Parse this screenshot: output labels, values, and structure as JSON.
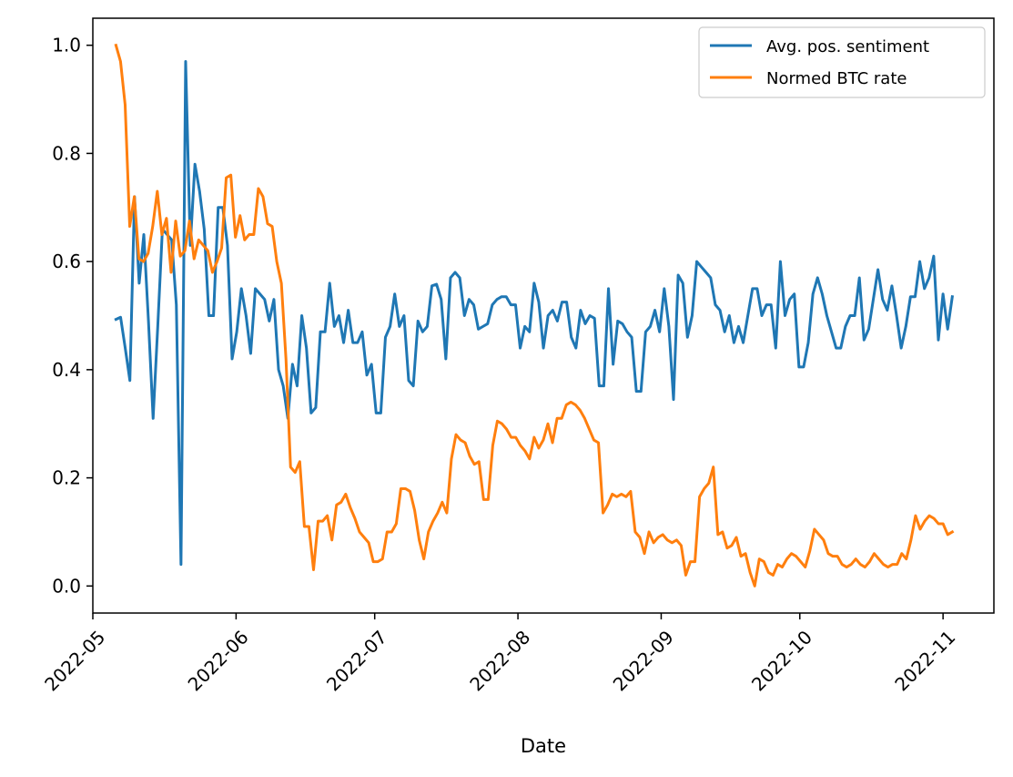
{
  "chart_data": {
    "type": "line",
    "title": "",
    "xlabel": "Date",
    "ylabel": "",
    "x_start": "2022-05-06",
    "x_end": "2022-11-03",
    "xlim": [
      "2022-05-01",
      "2022-11-12"
    ],
    "ylim": [
      -0.05,
      1.05
    ],
    "yticks": [
      0.0,
      0.2,
      0.4,
      0.6,
      0.8,
      1.0
    ],
    "xtick_dates": [
      "2022-05-01",
      "2022-06-01",
      "2022-07-01",
      "2022-08-01",
      "2022-09-01",
      "2022-10-01",
      "2022-11-01"
    ],
    "xtick_labels": [
      "2022-05",
      "2022-06",
      "2022-07",
      "2022-08",
      "2022-09",
      "2022-10",
      "2022-11"
    ],
    "ytick_labels": [
      "0.0",
      "0.2",
      "0.4",
      "0.6",
      "0.8",
      "1.0"
    ],
    "grid": false,
    "legend": "top-right",
    "series": [
      {
        "name": "Avg. pos. sentiment",
        "color": "#1f77b4",
        "values": [
          0.493,
          0.497,
          0.44,
          0.38,
          0.72,
          0.56,
          0.65,
          0.49,
          0.31,
          0.48,
          0.66,
          0.65,
          0.64,
          0.52,
          0.04,
          0.97,
          0.63,
          0.78,
          0.73,
          0.66,
          0.5,
          0.5,
          0.7,
          0.7,
          0.63,
          0.42,
          0.47,
          0.55,
          0.5,
          0.43,
          0.55,
          0.54,
          0.53,
          0.49,
          0.53,
          0.4,
          0.37,
          0.31,
          0.41,
          0.37,
          0.5,
          0.44,
          0.32,
          0.33,
          0.47,
          0.47,
          0.56,
          0.48,
          0.5,
          0.45,
          0.51,
          0.45,
          0.45,
          0.47,
          0.39,
          0.41,
          0.32,
          0.32,
          0.46,
          0.48,
          0.54,
          0.48,
          0.5,
          0.38,
          0.37,
          0.49,
          0.47,
          0.48,
          0.555,
          0.558,
          0.53,
          0.42,
          0.57,
          0.58,
          0.57,
          0.5,
          0.53,
          0.52,
          0.475,
          0.48,
          0.485,
          0.52,
          0.53,
          0.535,
          0.535,
          0.52,
          0.52,
          0.44,
          0.48,
          0.47,
          0.56,
          0.525,
          0.44,
          0.5,
          0.51,
          0.49,
          0.525,
          0.525,
          0.46,
          0.44,
          0.51,
          0.485,
          0.5,
          0.495,
          0.37,
          0.37,
          0.55,
          0.41,
          0.49,
          0.485,
          0.47,
          0.46,
          0.36,
          0.36,
          0.47,
          0.48,
          0.51,
          0.47,
          0.55,
          0.48,
          0.345,
          0.575,
          0.56,
          0.46,
          0.5,
          0.6,
          0.59,
          0.58,
          0.57,
          0.52,
          0.51,
          0.47,
          0.5,
          0.45,
          0.48,
          0.45,
          0.5,
          0.55,
          0.55,
          0.5,
          0.52,
          0.52,
          0.44,
          0.6,
          0.5,
          0.53,
          0.54,
          0.405,
          0.405,
          0.45,
          0.54,
          0.57,
          0.54,
          0.5,
          0.47,
          0.44,
          0.44,
          0.48,
          0.5,
          0.5,
          0.57,
          0.455,
          0.475,
          0.53,
          0.585,
          0.53,
          0.51,
          0.555,
          0.5,
          0.44,
          0.48,
          0.535,
          0.535,
          0.6,
          0.55,
          0.57,
          0.61,
          0.455,
          0.54,
          0.475,
          0.535
        ]
      },
      {
        "name": "Normed BTC rate",
        "color": "#ff7f0e",
        "values": [
          1.0,
          0.97,
          0.89,
          0.665,
          0.72,
          0.605,
          0.6,
          0.615,
          0.665,
          0.73,
          0.65,
          0.68,
          0.58,
          0.675,
          0.61,
          0.62,
          0.675,
          0.605,
          0.64,
          0.63,
          0.62,
          0.58,
          0.6,
          0.625,
          0.755,
          0.76,
          0.645,
          0.685,
          0.64,
          0.65,
          0.65,
          0.735,
          0.72,
          0.67,
          0.665,
          0.6,
          0.56,
          0.42,
          0.22,
          0.21,
          0.23,
          0.11,
          0.11,
          0.03,
          0.12,
          0.12,
          0.13,
          0.085,
          0.15,
          0.155,
          0.17,
          0.145,
          0.125,
          0.1,
          0.09,
          0.08,
          0.045,
          0.045,
          0.05,
          0.1,
          0.1,
          0.115,
          0.18,
          0.18,
          0.175,
          0.14,
          0.085,
          0.05,
          0.1,
          0.12,
          0.135,
          0.155,
          0.135,
          0.235,
          0.28,
          0.27,
          0.265,
          0.24,
          0.225,
          0.23,
          0.16,
          0.16,
          0.26,
          0.305,
          0.3,
          0.29,
          0.275,
          0.275,
          0.26,
          0.25,
          0.235,
          0.275,
          0.255,
          0.27,
          0.3,
          0.265,
          0.31,
          0.31,
          0.335,
          0.34,
          0.335,
          0.325,
          0.31,
          0.29,
          0.27,
          0.265,
          0.135,
          0.15,
          0.17,
          0.165,
          0.17,
          0.165,
          0.175,
          0.1,
          0.09,
          0.06,
          0.1,
          0.08,
          0.09,
          0.095,
          0.085,
          0.08,
          0.085,
          0.075,
          0.02,
          0.045,
          0.045,
          0.165,
          0.18,
          0.19,
          0.22,
          0.095,
          0.1,
          0.07,
          0.075,
          0.09,
          0.055,
          0.06,
          0.025,
          0.0,
          0.05,
          0.045,
          0.025,
          0.02,
          0.04,
          0.035,
          0.05,
          0.06,
          0.055,
          0.045,
          0.035,
          0.065,
          0.105,
          0.095,
          0.085,
          0.06,
          0.055,
          0.055,
          0.04,
          0.035,
          0.04,
          0.05,
          0.04,
          0.035,
          0.045,
          0.06,
          0.05,
          0.04,
          0.035,
          0.04,
          0.04,
          0.06,
          0.05,
          0.085,
          0.13,
          0.105,
          0.12,
          0.13,
          0.125,
          0.115,
          0.115,
          0.095,
          0.1
        ]
      }
    ]
  }
}
